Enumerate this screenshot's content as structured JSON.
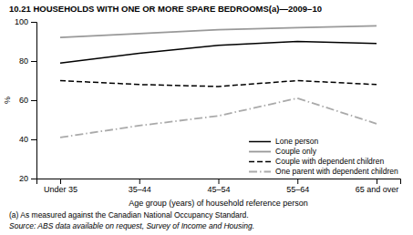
{
  "chart_data": {
    "type": "line",
    "title": "10.21  HOUSEHOLDS WITH ONE OR MORE SPARE BEDROOMS(a)—2009–10",
    "x_label": "Age group (years) of household reference person",
    "y_label": "%",
    "categories": [
      "Under 35",
      "35–44",
      "45–54",
      "55–64",
      "65 and over"
    ],
    "series": [
      {
        "name": "Lone person",
        "color": "#000000",
        "line_style": "solid",
        "values": [
          79,
          84,
          88,
          90,
          89
        ]
      },
      {
        "name": "Couple only",
        "color": "#999999",
        "line_style": "solid",
        "values": [
          92,
          94,
          96,
          97,
          98
        ]
      },
      {
        "name": "Couple with dependent children",
        "color": "#000000",
        "line_style": "dashed",
        "values": [
          70,
          68,
          67,
          70,
          68
        ]
      },
      {
        "name": "One parent with dependent children",
        "color": "#aaaaaa",
        "line_style": "dashdot",
        "values": [
          41,
          47,
          52,
          61,
          48
        ]
      }
    ],
    "ylim": [
      20,
      100
    ],
    "yticks": [
      20,
      40,
      60,
      80,
      100
    ],
    "grid": false,
    "legend": "lower right",
    "annotations": [
      "(a)  As measured against the Canadian National Occupancy Standard.",
      "Source: ABS data available on request, Survey of Income and Housing."
    ]
  }
}
